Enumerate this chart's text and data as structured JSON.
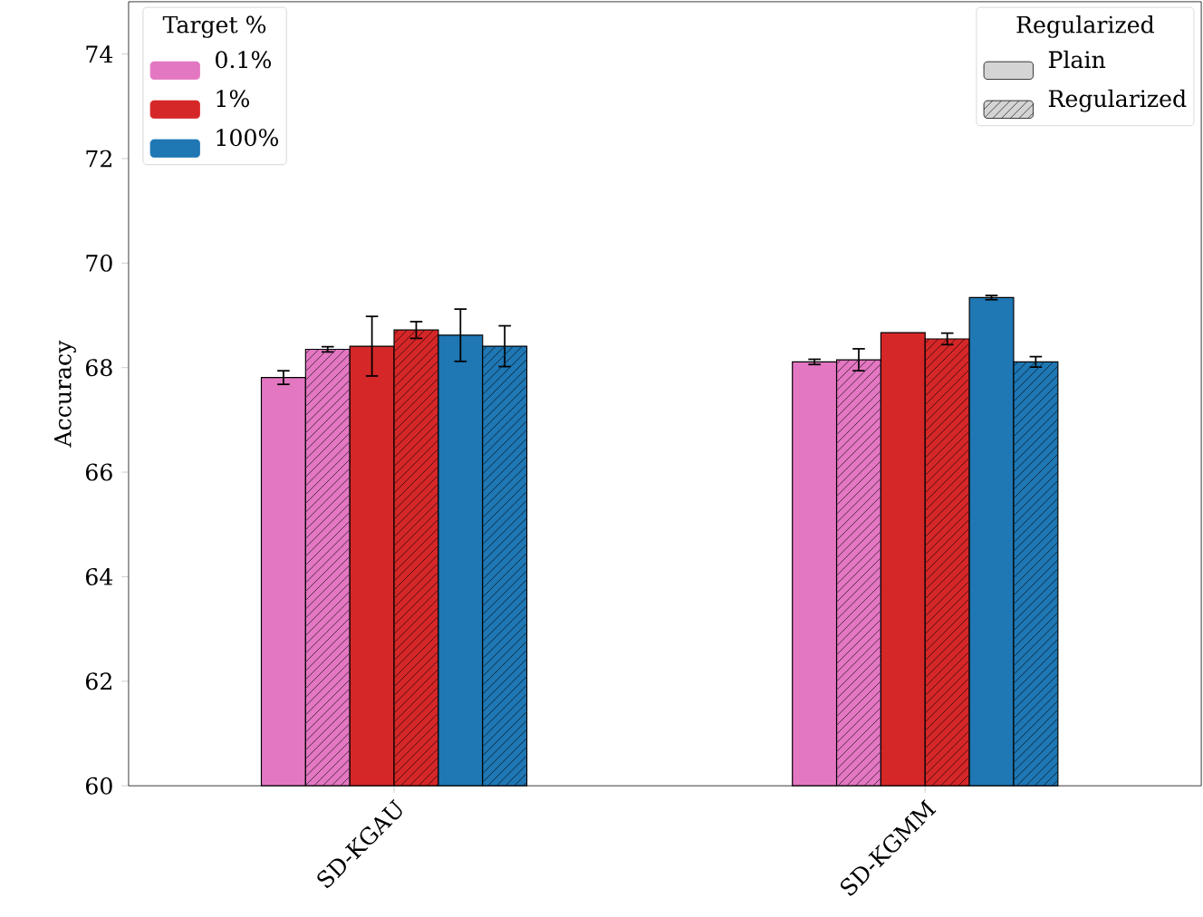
{
  "chart_data": {
    "type": "bar",
    "categories": [
      "SD-KGAU",
      "SD-KGMM"
    ],
    "ylabel": "Accuracy",
    "ylim": [
      60,
      75
    ],
    "yticks": [
      60,
      62,
      64,
      66,
      68,
      70,
      72,
      74
    ],
    "legend": "top left",
    "legend_title": "Target %",
    "series": [
      {
        "name": "0.1%",
        "color": "#e377c2",
        "values": [
          67.81,
          68.11
        ],
        "errors": [
          0.13,
          0.05
        ]
      },
      {
        "color": "#e377c2",
        "values": [
          68.35,
          68.15
        ],
        "errors": [
          0.05,
          0.21
        ]
      },
      {
        "name": "1%",
        "color": "#d62728",
        "values": [
          68.41,
          68.67
        ],
        "errors": [
          0.57,
          null
        ]
      },
      {
        "color": "#d62728",
        "values": [
          68.72,
          68.55
        ],
        "errors": [
          0.16,
          0.11
        ]
      },
      {
        "name": "100%",
        "color": "#1f77b4",
        "values": [
          68.62,
          69.34
        ],
        "errors": [
          0.5,
          0.04
        ]
      },
      {
        "color": "#1f77b4",
        "values": [
          68.41,
          68.11
        ],
        "errors": [
          0.39,
          0.1
        ]
      }
    ],
    "annotations": [
      "Regularized",
      "Plain",
      "Regularized"
    ]
  }
}
